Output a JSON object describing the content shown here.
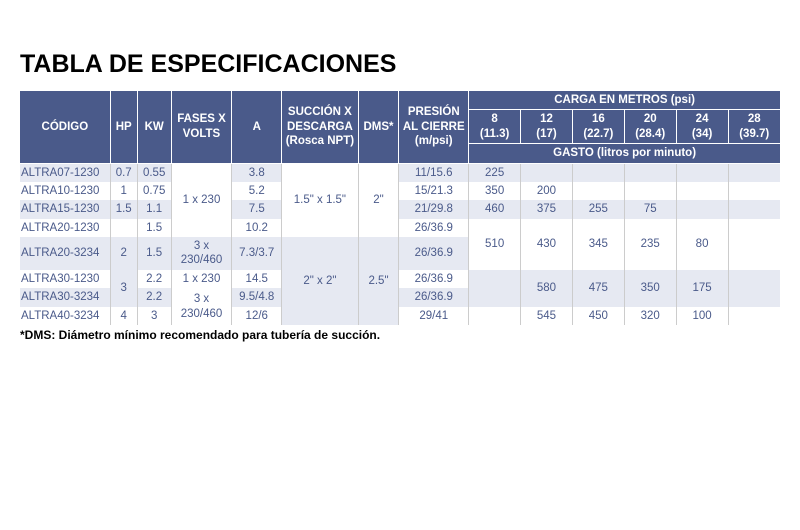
{
  "title": "TABLA DE ESPECIFICACIONES",
  "footnote": "*DMS: Diámetro mínimo recomendado para tubería de succión.",
  "header": {
    "codigo": "CÓDIGO",
    "hp": "HP",
    "kw": "KW",
    "fases": "FASES X VOLTS",
    "a": "A",
    "succ": "SUCCIÓN X DESCARGA (Rosca NPT)",
    "dms": "DMS*",
    "pres": "PRESIÓN AL CIERRE (m/psi)",
    "carga": "CARGA EN METROS (psi)",
    "gasto": "GASTO (litros por minuto)",
    "c8t": "8",
    "c8b": "(11.3)",
    "c12t": "12",
    "c12b": "(17)",
    "c16t": "16",
    "c16b": "(22.7)",
    "c20t": "20",
    "c20b": "(28.4)",
    "c24t": "24",
    "c24b": "(34)",
    "c28t": "28",
    "c28b": "(39.7)"
  },
  "rows": {
    "r0": {
      "codigo": "ALTRA07-1230",
      "hp": "0.7",
      "kw": "0.55",
      "a": "3.8",
      "pres": "11/15.6",
      "c8": "225"
    },
    "r1": {
      "codigo": "ALTRA10-1230",
      "hp": "1",
      "kw": "0.75",
      "a": "5.2",
      "pres": "15/21.3",
      "c8": "350",
      "c12": "200"
    },
    "r2": {
      "codigo": "ALTRA15-1230",
      "hp": "1.5",
      "kw": "1.1",
      "a": "7.5",
      "pres": "21/29.8",
      "c8": "460",
      "c12": "375",
      "c16": "255",
      "c20": "75"
    },
    "r3": {
      "codigo": "ALTRA20-1230",
      "kw": "1.5",
      "a": "10.2",
      "pres": "26/36.9"
    },
    "r4": {
      "codigo": "ALTRA20-3234",
      "hp": "2",
      "kw": "1.5",
      "fases": "3 x 230/460",
      "a": "7.3/3.7",
      "pres": "26/36.9",
      "c8": "510",
      "c12": "430",
      "c16": "345",
      "c20": "235",
      "c24": "80"
    },
    "r5": {
      "codigo": "ALTRA30-1230",
      "hp": "3",
      "kw": "2.2",
      "fases": "1 x 230",
      "a": "14.5",
      "pres": "26/36.9",
      "c12": "580",
      "c16": "475",
      "c20": "350",
      "c24": "175"
    },
    "r6": {
      "codigo": "ALTRA30-3234",
      "kw": "2.2",
      "fases": "3 x 230/460",
      "a": "9.5/4.8",
      "pres": "26/36.9"
    },
    "r7": {
      "codigo": "ALTRA40-3234",
      "hp": "4",
      "kw": "3",
      "a": "12/6",
      "pres": "29/41",
      "c12": "545",
      "c16": "450",
      "c20": "320",
      "c24": "100"
    }
  },
  "groups": {
    "fases_r0_r3": "1 x 230",
    "succ_r0_r3": "1.5\" x 1.5\"",
    "dms_r0_r3": "2\"",
    "succ_r4_r7": "2\" x 2\"",
    "dms_r4_r7": "2.5\""
  },
  "colors": {
    "header_bg": "#4a5a8a",
    "header_fg": "#ffffff",
    "row_odd_bg": "#e6e9f2",
    "row_even_bg": "#ffffff",
    "text_color": "#4a5a8a",
    "border_color": "#cccccc",
    "title_color": "#000000"
  }
}
